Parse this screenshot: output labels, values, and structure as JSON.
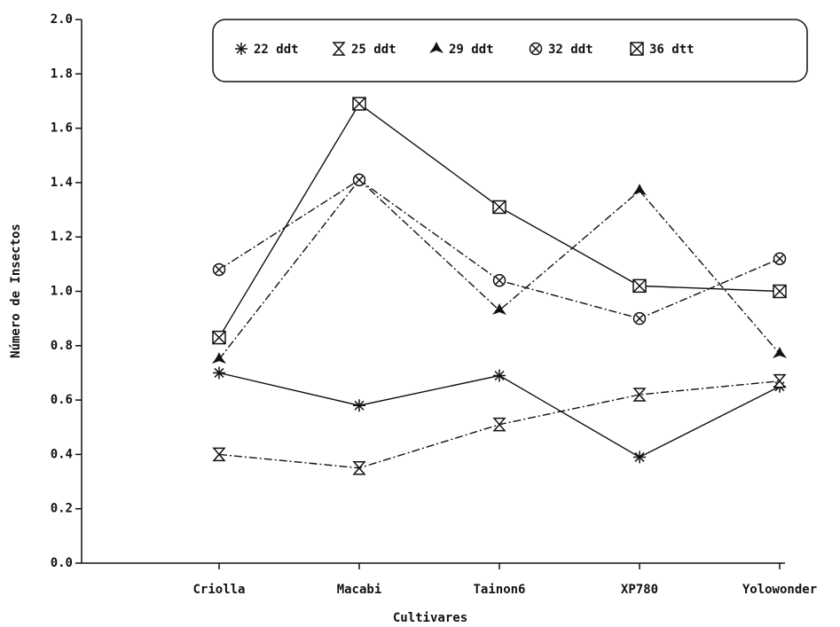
{
  "chart_data": {
    "type": "line",
    "categories": [
      "Criolla",
      "Macabi",
      "Tainon6",
      "XP780",
      "Yolowonder"
    ],
    "series": [
      {
        "name": "22 ddt",
        "color": "#111111",
        "marker": "asterisk",
        "linestyle": "solid",
        "values": [
          0.7,
          0.58,
          0.69,
          0.39,
          0.65
        ]
      },
      {
        "name": "25 ddt",
        "color": "#111111",
        "marker": "hourglass",
        "linestyle": "dashdot",
        "values": [
          0.4,
          0.35,
          0.51,
          0.62,
          0.67
        ]
      },
      {
        "name": "29 ddt",
        "color": "#111111",
        "marker": "star",
        "linestyle": "dashdot",
        "values": [
          0.75,
          1.41,
          0.93,
          1.37,
          0.77
        ]
      },
      {
        "name": "32 ddt",
        "color": "#111111",
        "marker": "circlex",
        "linestyle": "dashdot",
        "values": [
          1.08,
          1.41,
          1.04,
          0.9,
          1.12
        ]
      },
      {
        "name": "36 dtt",
        "color": "#111111",
        "marker": "squarex",
        "linestyle": "solid",
        "values": [
          0.83,
          1.69,
          1.31,
          1.02,
          1.0
        ]
      }
    ],
    "xlabel": "Cultivares",
    "ylabel": "Número de Insectos",
    "ylim": [
      0,
      2.0
    ],
    "yticks": [
      {
        "value": 0,
        "label": "0.0"
      },
      0.2,
      0.4,
      0.6,
      0.8,
      {
        "value": 1.0,
        "label": "1.0"
      },
      1.2,
      1.4,
      1.6,
      1.8,
      {
        "value": 2.0,
        "label": "2.0"
      }
    ],
    "legend": "top"
  }
}
